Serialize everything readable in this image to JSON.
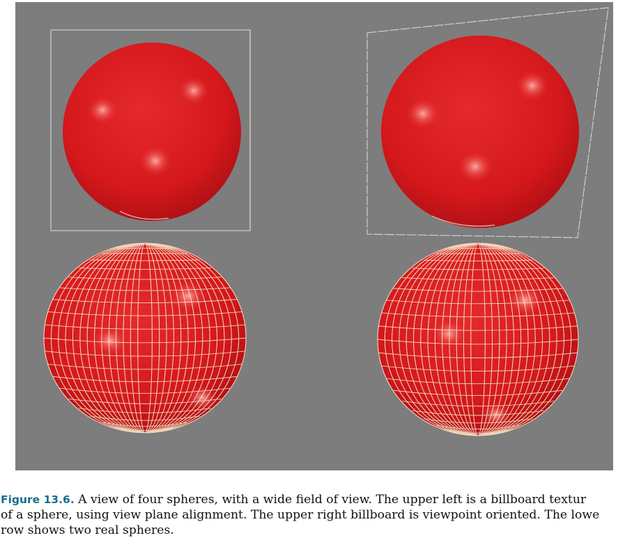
{
  "figure": {
    "label": "Figure 13.6.",
    "caption_lines": [
      " A view of four spheres, with a wide field of view. The upper left is a billboard textur",
      "of a sphere, using view plane alignment. The upper right billboard is viewpoint oriented. The lowe",
      "row shows two real spheres."
    ],
    "colors": {
      "background": "#7d7d7d",
      "sphere": "#d8191c",
      "wireframe": "#f4e6c8",
      "billboard_frame": "#bcd6dc",
      "label": "#1a6e8e"
    },
    "image_description_tags": [
      "billboard-sphere-view-plane",
      "billboard-sphere-viewpoint",
      "wireframe-sphere",
      "wireframe-sphere"
    ]
  }
}
